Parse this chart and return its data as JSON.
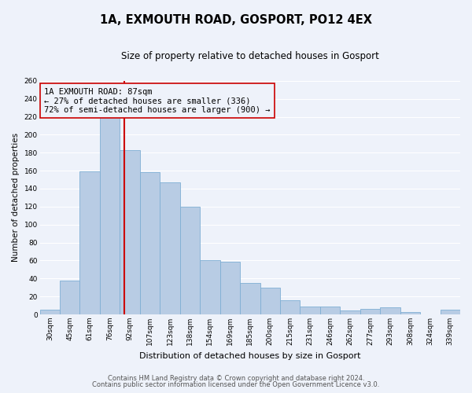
{
  "title": "1A, EXMOUTH ROAD, GOSPORT, PO12 4EX",
  "subtitle": "Size of property relative to detached houses in Gosport",
  "xlabel": "Distribution of detached houses by size in Gosport",
  "ylabel": "Number of detached properties",
  "bin_labels": [
    "30sqm",
    "45sqm",
    "61sqm",
    "76sqm",
    "92sqm",
    "107sqm",
    "123sqm",
    "138sqm",
    "154sqm",
    "169sqm",
    "185sqm",
    "200sqm",
    "215sqm",
    "231sqm",
    "246sqm",
    "262sqm",
    "277sqm",
    "293sqm",
    "308sqm",
    "324sqm",
    "339sqm"
  ],
  "bar_heights": [
    5,
    38,
    159,
    220,
    183,
    158,
    147,
    120,
    60,
    59,
    35,
    30,
    16,
    9,
    9,
    4,
    6,
    8,
    3,
    0,
    5
  ],
  "bar_color": "#b8cce4",
  "bar_edge_color": "#7fafd4",
  "vline_x_pos": 3.72,
  "vline_color": "#cc0000",
  "annotation_title": "1A EXMOUTH ROAD: 87sqm",
  "annotation_line1": "← 27% of detached houses are smaller (336)",
  "annotation_line2": "72% of semi-detached houses are larger (900) →",
  "annotation_box_edge": "#cc0000",
  "ylim": [
    0,
    260
  ],
  "yticks": [
    0,
    20,
    40,
    60,
    80,
    100,
    120,
    140,
    160,
    180,
    200,
    220,
    240,
    260
  ],
  "footnote1": "Contains HM Land Registry data © Crown copyright and database right 2024.",
  "footnote2": "Contains public sector information licensed under the Open Government Licence v3.0.",
  "bg_color": "#eef2fa",
  "grid_color": "#ffffff",
  "title_fontsize": 10.5,
  "subtitle_fontsize": 8.5,
  "xlabel_fontsize": 8,
  "ylabel_fontsize": 7.5,
  "tick_fontsize": 6.5,
  "annotation_fontsize": 7.5,
  "footnote_fontsize": 6.0
}
